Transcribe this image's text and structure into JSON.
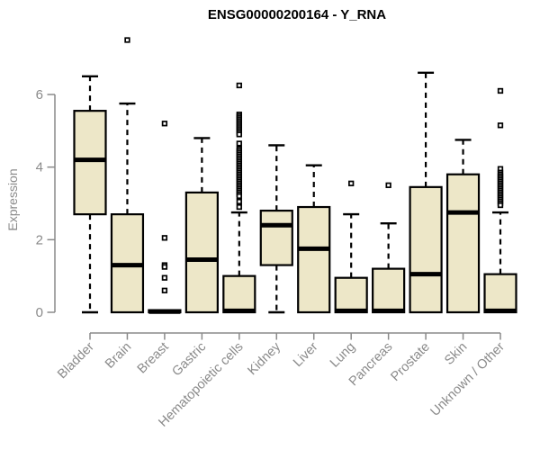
{
  "title": "ENSG00000200164 - Y_RNA",
  "ylabel": "Expression",
  "colors": {
    "box_fill": "#ede7c8",
    "box_stroke": "#000000",
    "axis": "#8a8a8a",
    "title": "#000000"
  },
  "chart_data": {
    "type": "boxplot",
    "title": "ENSG00000200164 - Y_RNA",
    "xlabel": "",
    "ylabel": "Expression",
    "ylim": [
      0,
      6
    ],
    "yticks": [
      0,
      2,
      4,
      6
    ],
    "grid": false,
    "legend": "none",
    "categories": [
      "Bladder",
      "Brain",
      "Breast",
      "Gastric",
      "Hematopoietic cells",
      "Kidney",
      "Liver",
      "Lung",
      "Pancreas",
      "Prostate",
      "Skin",
      "Unknown / Other"
    ],
    "boxes": [
      {
        "label": "Bladder",
        "min": 0,
        "q1": 2.7,
        "median": 4.2,
        "q3": 5.55,
        "max": 6.5,
        "outliers": []
      },
      {
        "label": "Brain",
        "min": 0,
        "q1": 0,
        "median": 1.3,
        "q3": 2.7,
        "max": 5.75,
        "outliers": [
          7.5
        ]
      },
      {
        "label": "Breast",
        "min": 0,
        "q1": 0,
        "median": 0.02,
        "q3": 0.06,
        "max": 0.06,
        "outliers": [
          5.2,
          2.05,
          1.3,
          1.25,
          0.95,
          0.6
        ]
      },
      {
        "label": "Gastric",
        "min": 0,
        "q1": 0,
        "median": 1.45,
        "q3": 3.3,
        "max": 4.8,
        "outliers": []
      },
      {
        "label": "Hematopoietic cells",
        "min": 0,
        "q1": 0,
        "median": 0.04,
        "q3": 1.0,
        "max": 2.75,
        "outliers": [
          6.25,
          5.45,
          5.4,
          5.35,
          5.3,
          5.25,
          5.2,
          5.15,
          5.1,
          5.05,
          5.0,
          4.95,
          4.9,
          4.65,
          4.5,
          4.45,
          4.4,
          4.35,
          4.3,
          4.25,
          4.2,
          4.15,
          4.1,
          4.05,
          4.0,
          3.95,
          3.9,
          3.85,
          3.8,
          3.75,
          3.7,
          3.65,
          3.6,
          3.55,
          3.5,
          3.45,
          3.4,
          3.35,
          3.3,
          3.25,
          3.2,
          3.05,
          2.9
        ]
      },
      {
        "label": "Kidney",
        "min": 0,
        "q1": 1.3,
        "median": 2.4,
        "q3": 2.8,
        "max": 4.6,
        "outliers": []
      },
      {
        "label": "Liver",
        "min": 0,
        "q1": 0,
        "median": 1.75,
        "q3": 2.9,
        "max": 4.05,
        "outliers": []
      },
      {
        "label": "Lung",
        "min": 0,
        "q1": 0,
        "median": 0.04,
        "q3": 0.95,
        "max": 2.7,
        "outliers": [
          3.55
        ]
      },
      {
        "label": "Pancreas",
        "min": 0,
        "q1": 0,
        "median": 0.04,
        "q3": 1.2,
        "max": 2.45,
        "outliers": [
          3.5
        ]
      },
      {
        "label": "Prostate",
        "min": 0,
        "q1": 0,
        "median": 1.05,
        "q3": 3.45,
        "max": 6.6,
        "outliers": []
      },
      {
        "label": "Skin",
        "min": 0,
        "q1": 0,
        "median": 2.75,
        "q3": 3.8,
        "max": 4.75,
        "outliers": []
      },
      {
        "label": "Unknown / Other",
        "min": 0,
        "q1": 0,
        "median": 0.04,
        "q3": 1.05,
        "max": 2.75,
        "outliers": [
          6.1,
          5.15,
          3.95,
          3.85,
          3.8,
          3.75,
          3.7,
          3.65,
          3.6,
          3.55,
          3.5,
          3.45,
          3.4,
          3.35,
          3.3,
          3.25,
          3.2,
          3.15,
          3.1,
          3.05,
          3.0,
          2.95
        ]
      }
    ]
  }
}
